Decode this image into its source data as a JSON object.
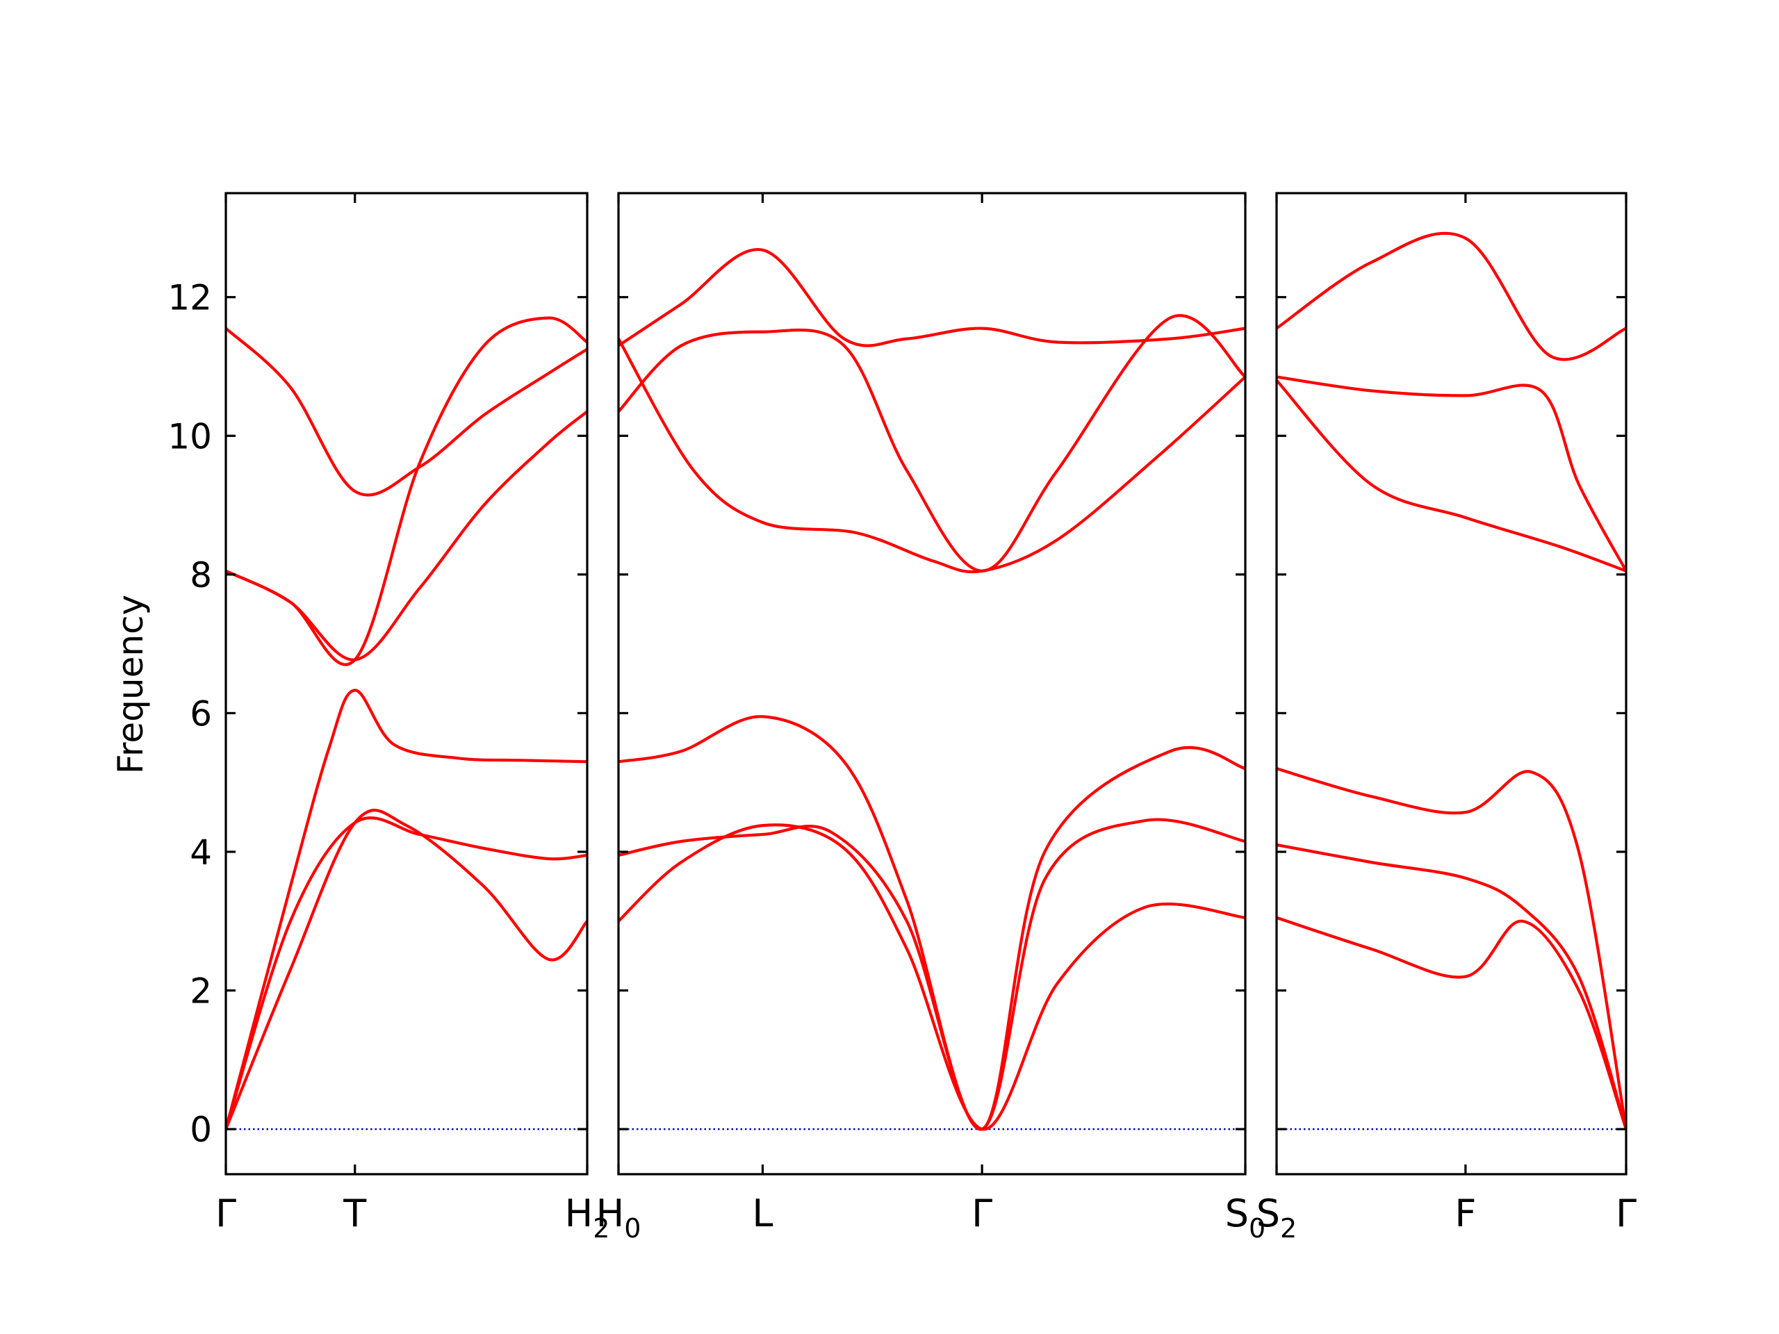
{
  "chart_data": {
    "type": "line",
    "title": "",
    "ylabel": "Frequency",
    "xlabel": "",
    "ylim": [
      -0.65,
      13.5
    ],
    "yticks": [
      0,
      2,
      4,
      6,
      8,
      10,
      12
    ],
    "grid": false,
    "legend": "none",
    "colors": {
      "bands": "#ff0000",
      "zero_line": "#0000cc",
      "frame": "#000000"
    },
    "panels": [
      {
        "xticks": [
          {
            "pos": 0,
            "label": "Γ",
            "sub": ""
          },
          {
            "pos": 1,
            "label": "T",
            "sub": ""
          },
          {
            "pos": 2.8,
            "label": "H",
            "sub": "2"
          }
        ],
        "series": [
          {
            "x": [
              0,
              0.5,
              1,
              1.4,
              2,
              2.5,
              2.8
            ],
            "values": [
              0,
              2.3,
              4.42,
              4.38,
              3.5,
              2.45,
              3.0
            ]
          },
          {
            "x": [
              0,
              0.5,
              1,
              1.5,
              2,
              2.5,
              2.8
            ],
            "values": [
              0,
              3.0,
              4.42,
              4.25,
              4.05,
              3.9,
              3.95
            ]
          },
          {
            "x": [
              0,
              0.5,
              0.8,
              1,
              1.3,
              1.8,
              2.3,
              2.8
            ],
            "values": [
              0,
              3.5,
              5.5,
              6.33,
              5.55,
              5.35,
              5.32,
              5.3
            ]
          },
          {
            "x": [
              0,
              0.5,
              1,
              1.5,
              2,
              2.5,
              2.8
            ],
            "values": [
              8.05,
              7.6,
              6.77,
              7.8,
              9.0,
              9.9,
              10.35
            ]
          },
          {
            "x": [
              0,
              0.5,
              1,
              1.5,
              2,
              2.5,
              2.8
            ],
            "values": [
              8.05,
              7.6,
              6.77,
              9.6,
              11.3,
              11.7,
              11.35
            ]
          },
          {
            "x": [
              0,
              0.5,
              1,
              1.5,
              2,
              2.5,
              2.8
            ],
            "values": [
              11.55,
              10.7,
              9.2,
              9.55,
              10.3,
              10.9,
              11.25
            ]
          }
        ]
      },
      {
        "xticks": [
          {
            "pos": 0,
            "label": "H",
            "sub": "0"
          },
          {
            "pos": 1.15,
            "label": "L",
            "sub": ""
          },
          {
            "pos": 2.9,
            "label": "Γ",
            "sub": ""
          },
          {
            "pos": 5.0,
            "label": "S",
            "sub": "0"
          }
        ],
        "series": [
          {
            "x": [
              0,
              0.5,
              1.15,
              1.8,
              2.3,
              2.9,
              3.5,
              4.2,
              5.0
            ],
            "values": [
              3.0,
              3.85,
              4.38,
              4.05,
              2.6,
              0,
              2.1,
              3.2,
              3.05
            ]
          },
          {
            "x": [
              0,
              0.5,
              1.15,
              1.7,
              2.3,
              2.9,
              3.4,
              4.2,
              5.0
            ],
            "values": [
              3.95,
              4.15,
              4.25,
              4.28,
              3.0,
              0,
              3.6,
              4.45,
              4.15
            ]
          },
          {
            "x": [
              0,
              0.5,
              1.15,
              1.8,
              2.3,
              2.9,
              3.4,
              4.4,
              5.0
            ],
            "values": [
              5.3,
              5.45,
              5.95,
              5.3,
              3.3,
              0,
              4.0,
              5.45,
              5.2
            ]
          },
          {
            "x": [
              0,
              0.6,
              1.15,
              1.9,
              2.5,
              2.9,
              3.5,
              4.3,
              5.0
            ],
            "values": [
              11.4,
              9.5,
              8.75,
              8.6,
              8.2,
              8.05,
              8.5,
              9.7,
              10.85
            ]
          },
          {
            "x": [
              0,
              0.5,
              1.15,
              1.8,
              2.3,
              2.9,
              3.5,
              4.4,
              5.0
            ],
            "values": [
              10.35,
              11.3,
              11.5,
              11.3,
              9.5,
              8.05,
              9.5,
              11.7,
              10.85
            ]
          },
          {
            "x": [
              0,
              0.5,
              1.15,
              1.8,
              2.3,
              2.9,
              3.5,
              4.4,
              5.0
            ],
            "values": [
              11.3,
              11.9,
              12.68,
              11.4,
              11.4,
              11.55,
              11.35,
              11.4,
              11.55
            ]
          }
        ]
      },
      {
        "xticks": [
          {
            "pos": 0,
            "label": "S",
            "sub": "2"
          },
          {
            "pos": 1,
            "label": "F",
            "sub": ""
          },
          {
            "pos": 1.85,
            "label": "Γ",
            "sub": ""
          }
        ],
        "series": [
          {
            "x": [
              0,
              0.5,
              1,
              1.3,
              1.6,
              1.85
            ],
            "values": [
              3.05,
              2.6,
              2.2,
              3.0,
              2.0,
              0
            ]
          },
          {
            "x": [
              0,
              0.5,
              1,
              1.3,
              1.6,
              1.85
            ],
            "values": [
              4.1,
              3.85,
              3.62,
              3.2,
              2.2,
              0
            ]
          },
          {
            "x": [
              0,
              0.5,
              1,
              1.35,
              1.6,
              1.85
            ],
            "values": [
              5.2,
              4.8,
              4.57,
              5.15,
              4.0,
              0
            ]
          },
          {
            "x": [
              0,
              0.5,
              1,
              1.5,
              1.85
            ],
            "values": [
              10.8,
              9.3,
              8.82,
              8.4,
              8.05
            ]
          },
          {
            "x": [
              0,
              0.5,
              1,
              1.4,
              1.6,
              1.85
            ],
            "values": [
              10.85,
              10.65,
              10.58,
              10.65,
              9.3,
              8.05
            ]
          },
          {
            "x": [
              0,
              0.5,
              1,
              1.45,
              1.85
            ],
            "values": [
              11.55,
              12.5,
              12.85,
              11.15,
              11.55
            ]
          }
        ]
      }
    ]
  }
}
